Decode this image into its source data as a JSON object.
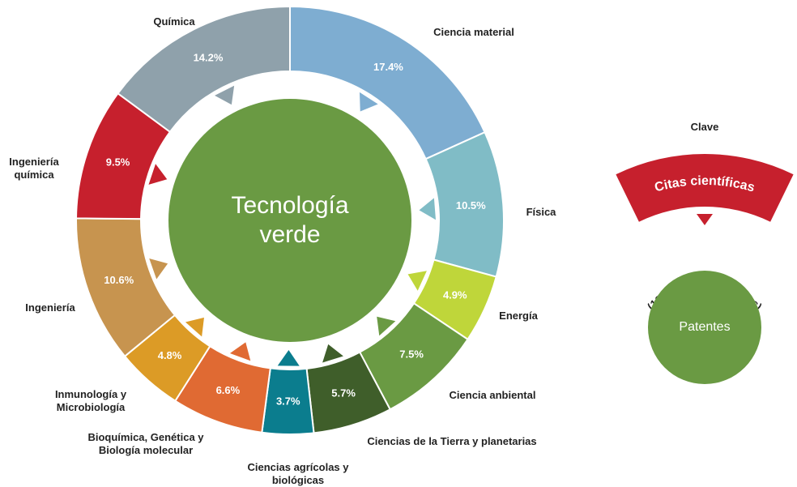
{
  "chart_data": {
    "type": "donut",
    "center_label": "Tecnología verde",
    "categories": [
      "Ciencia material",
      "Física",
      "Energía",
      "Ciencia anbiental",
      "Ciencias de la Tierra y planetarias",
      "Ciencias agrícolas y biológicas",
      "Bioquímica, Genética y Biología molecular",
      "Inmunología y Microbiología",
      "Ingeniería",
      "Ingeniería química",
      "Química"
    ],
    "values": [
      17.4,
      10.5,
      4.9,
      7.5,
      5.7,
      3.7,
      6.6,
      4.8,
      10.6,
      9.5,
      14.2
    ],
    "value_labels": [
      "17.4%",
      "10.5%",
      "4.9%",
      "7.5%",
      "5.7%",
      "3.7%",
      "6.6%",
      "4.8%",
      "10.6%",
      "9.5%",
      "14.2%"
    ],
    "colors": [
      "#7eadd1",
      "#80bcc6",
      "#bfd63a",
      "#6a9a43",
      "#3f5e2a",
      "#0b7d8e",
      "#e06a33",
      "#dc9b26",
      "#c7944f",
      "#c6202d",
      "#8fa1ab"
    ],
    "center_color": "#6a9a43",
    "legend": {
      "title": "Clave",
      "banner": "Citas científicas",
      "note": "(100% = todas las citas)",
      "circle": "Patentes",
      "banner_color": "#c6202d",
      "circle_color": "#6a9a43"
    }
  }
}
